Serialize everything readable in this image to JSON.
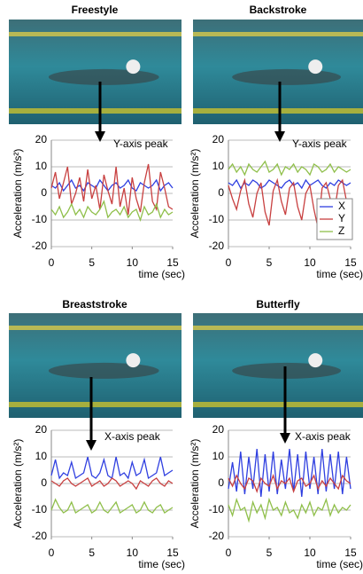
{
  "chart_data": [
    {
      "type": "line",
      "title": "Freestyle",
      "annotation": "Y-axis peak",
      "ylabel": "Acceleration (m/s²)",
      "xlabel": "time (sec)",
      "xlim": [
        0,
        15
      ],
      "xticks": [
        0,
        5,
        10,
        15
      ],
      "ylim": [
        -20,
        20
      ],
      "yticks": [
        -20,
        -10,
        0,
        10,
        20
      ],
      "grid": true,
      "x": [
        0,
        0.5,
        1,
        1.5,
        2,
        2.5,
        3,
        3.5,
        4,
        4.5,
        5,
        5.5,
        6,
        6.5,
        7,
        7.5,
        8,
        8.5,
        9,
        9.5,
        10,
        10.5,
        11,
        11.5,
        12,
        12.5,
        13,
        13.5,
        14,
        14.5,
        15
      ],
      "series": [
        {
          "color": "#2f3fe0",
          "values": [
            3,
            2,
            4,
            1,
            3,
            5,
            2,
            3,
            1,
            4,
            3,
            2,
            5,
            3,
            1,
            3,
            4,
            2,
            3,
            5,
            2,
            1,
            4,
            3,
            2,
            3,
            5,
            1,
            3,
            4,
            2
          ]
        },
        {
          "color": "#c84040",
          "values": [
            2,
            8,
            -2,
            4,
            10,
            -4,
            0,
            6,
            -3,
            9,
            -2,
            3,
            -6,
            7,
            1,
            -4,
            10,
            -5,
            2,
            -8,
            6,
            -2,
            -7,
            4,
            11,
            -3,
            -6,
            8,
            2,
            -5,
            -6
          ]
        },
        {
          "color": "#8fbf4a",
          "values": [
            -6,
            -8,
            -5,
            -9,
            -7,
            -4,
            -8,
            -6,
            -9,
            -5,
            -7,
            -8,
            -6,
            -3,
            -9,
            -7,
            -6,
            -8,
            -5,
            -9,
            -7,
            -6,
            -10,
            -5,
            -8,
            -7,
            -4,
            -9,
            -6,
            -8,
            -7
          ]
        }
      ]
    },
    {
      "type": "line",
      "title": "Backstroke",
      "annotation": "Y-axis peak",
      "ylabel": "Acceleration (m/s²)",
      "xlabel": "time (sec)",
      "xlim": [
        0,
        15
      ],
      "xticks": [
        0,
        5,
        10,
        15
      ],
      "ylim": [
        -20,
        20
      ],
      "yticks": [
        -20,
        -10,
        0,
        10,
        20
      ],
      "grid": true,
      "legend": "right",
      "x": [
        0,
        0.5,
        1,
        1.5,
        2,
        2.5,
        3,
        3.5,
        4,
        4.5,
        5,
        5.5,
        6,
        6.5,
        7,
        7.5,
        8,
        8.5,
        9,
        9.5,
        10,
        10.5,
        11,
        11.5,
        12,
        12.5,
        13,
        13.5,
        14,
        14.5,
        15
      ],
      "series": [
        {
          "name": "X",
          "color": "#2f3fe0",
          "values": [
            4,
            3,
            5,
            2,
            4,
            3,
            5,
            4,
            2,
            3,
            5,
            4,
            3,
            2,
            4,
            5,
            3,
            4,
            2,
            5,
            3,
            4,
            5,
            3,
            2,
            4,
            3,
            5,
            4,
            3,
            4
          ]
        },
        {
          "name": "Y",
          "color": "#c84040",
          "values": [
            3,
            -2,
            -6,
            1,
            5,
            -4,
            -9,
            0,
            4,
            -7,
            -12,
            1,
            5,
            -3,
            -8,
            2,
            4,
            -5,
            -10,
            0,
            3,
            -6,
            -13,
            2,
            4,
            -2,
            -7,
            3,
            5,
            -3,
            -6
          ]
        },
        {
          "name": "Z",
          "color": "#8fbf4a",
          "values": [
            9,
            11,
            8,
            10,
            7,
            11,
            9,
            8,
            10,
            12,
            8,
            9,
            11,
            7,
            10,
            9,
            11,
            8,
            10,
            9,
            7,
            11,
            10,
            8,
            9,
            11,
            8,
            10,
            9,
            8,
            9
          ]
        }
      ]
    },
    {
      "type": "line",
      "title": "Breaststroke",
      "annotation": "X-axis peak",
      "ylabel": "Acceleration (m/s²)",
      "xlabel": "time (sec)",
      "xlim": [
        0,
        15
      ],
      "xticks": [
        0,
        5,
        10,
        15
      ],
      "ylim": [
        -20,
        20
      ],
      "yticks": [
        -20,
        -10,
        0,
        10,
        20
      ],
      "grid": true,
      "x": [
        0,
        0.5,
        1,
        1.5,
        2,
        2.5,
        3,
        3.5,
        4,
        4.5,
        5,
        5.5,
        6,
        6.5,
        7,
        7.5,
        8,
        8.5,
        9,
        9.5,
        10,
        10.5,
        11,
        11.5,
        12,
        12.5,
        13,
        13.5,
        14,
        14.5,
        15
      ],
      "series": [
        {
          "color": "#2f3fe0",
          "values": [
            3,
            9,
            2,
            4,
            3,
            8,
            2,
            3,
            4,
            10,
            3,
            2,
            4,
            9,
            3,
            2,
            10,
            3,
            4,
            2,
            8,
            3,
            4,
            9,
            2,
            3,
            4,
            10,
            3,
            4,
            5
          ]
        },
        {
          "color": "#c84040",
          "values": [
            1,
            0,
            -1,
            1,
            2,
            0,
            -1,
            0,
            1,
            2,
            -1,
            0,
            1,
            -1,
            0,
            2,
            1,
            -1,
            0,
            1,
            0,
            -2,
            1,
            0,
            -1,
            1,
            2,
            0,
            -1,
            1,
            0
          ]
        },
        {
          "color": "#8fbf4a",
          "values": [
            -10,
            -6,
            -9,
            -11,
            -10,
            -7,
            -11,
            -10,
            -9,
            -8,
            -11,
            -10,
            -7,
            -10,
            -11,
            -9,
            -7,
            -11,
            -10,
            -9,
            -8,
            -11,
            -10,
            -7,
            -10,
            -11,
            -9,
            -8,
            -11,
            -10,
            -9
          ]
        }
      ]
    },
    {
      "type": "line",
      "title": "Butterfly",
      "annotation": "X-axis peak",
      "ylabel": "Acceleration (m/s²)",
      "xlabel": "time (sec)",
      "xlim": [
        0,
        15
      ],
      "xticks": [
        0,
        5,
        10,
        15
      ],
      "ylim": [
        -20,
        20
      ],
      "yticks": [
        -20,
        -10,
        0,
        10,
        20
      ],
      "grid": true,
      "x": [
        0,
        0.5,
        1,
        1.5,
        2,
        2.5,
        3,
        3.5,
        4,
        4.5,
        5,
        5.5,
        6,
        6.5,
        7,
        7.5,
        8,
        8.5,
        9,
        9.5,
        10,
        10.5,
        11,
        11.5,
        12,
        12.5,
        13,
        13.5,
        14,
        14.5,
        15
      ],
      "series": [
        {
          "color": "#2f3fe0",
          "values": [
            -2,
            8,
            -3,
            12,
            -4,
            10,
            -2,
            13,
            -5,
            11,
            -3,
            12,
            -4,
            9,
            -2,
            13,
            -3,
            11,
            -5,
            12,
            -2,
            10,
            -4,
            13,
            -3,
            11,
            -2,
            12,
            -4,
            10,
            -2
          ]
        },
        {
          "color": "#c84040",
          "values": [
            2,
            -1,
            3,
            0,
            -2,
            2,
            1,
            -3,
            2,
            0,
            -1,
            3,
            -2,
            1,
            0,
            2,
            -3,
            1,
            2,
            -1,
            0,
            3,
            -2,
            1,
            -1,
            2,
            0,
            -2,
            3,
            1,
            0
          ]
        },
        {
          "color": "#8fbf4a",
          "values": [
            -8,
            -12,
            -6,
            -10,
            -9,
            -14,
            -7,
            -11,
            -8,
            -13,
            -6,
            -10,
            -9,
            -12,
            -7,
            -11,
            -10,
            -13,
            -8,
            -11,
            -7,
            -12,
            -9,
            -10,
            -6,
            -12,
            -8,
            -11,
            -9,
            -10,
            -8
          ]
        }
      ]
    }
  ]
}
